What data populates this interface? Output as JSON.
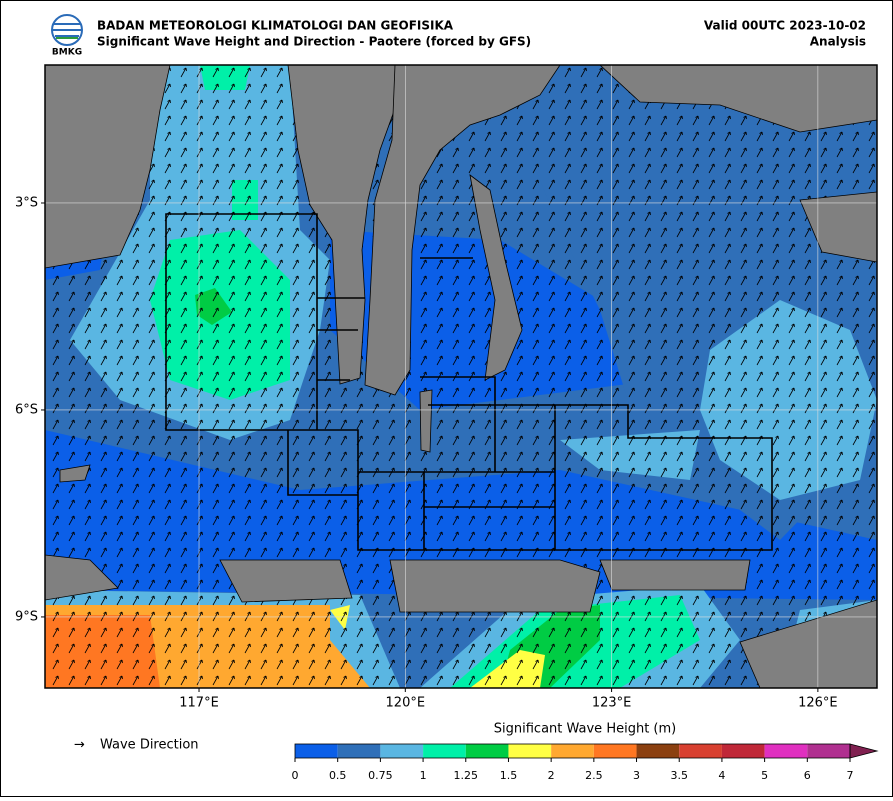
{
  "header": {
    "logo_text": "BMKG",
    "title": "BADAN METEOROLOGI KLIMATOLOGI DAN GEOFISIKA",
    "subtitle": "Significant Wave Height and Direction - Paotere (forced by GFS)",
    "valid": "Valid 00UTC 2023-10-02",
    "analysis": "Analysis"
  },
  "map": {
    "lonlim": [
      114.76,
      126.86
    ],
    "latlim": [
      -10.03,
      -1.0
    ],
    "xticks": [
      {
        "value": 117,
        "label": "117°E"
      },
      {
        "value": 120,
        "label": "120°E"
      },
      {
        "value": 123,
        "label": "123°E"
      },
      {
        "value": 126,
        "label": "126°E"
      }
    ],
    "yticks": [
      {
        "value": -3,
        "label": "3°S"
      },
      {
        "value": -6,
        "label": "6°S"
      },
      {
        "value": -9,
        "label": "9°S"
      }
    ],
    "grid": true
  },
  "legend": {
    "symbol": "→",
    "label": "Wave Direction"
  },
  "colorbar": {
    "title": "Significant Wave Height (m)",
    "bounds": [
      0,
      0.5,
      0.75,
      1,
      1.25,
      1.5,
      2,
      2.5,
      3,
      3.5,
      4,
      5,
      6,
      7
    ],
    "colors": [
      "#0b5fe8",
      "#2f6fb8",
      "#5ab6e2",
      "#00f0a8",
      "#00cc44",
      "#ffff44",
      "#ffa830",
      "#ff7722",
      "#8b4010",
      "#d84030",
      "#c02838",
      "#e030c0",
      "#b03090"
    ],
    "extend_color": "#802050"
  }
}
